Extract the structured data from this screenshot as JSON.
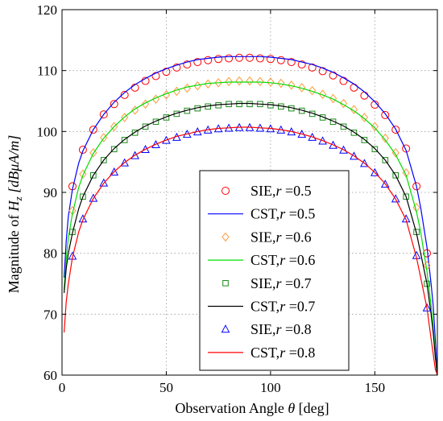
{
  "chart_data": {
    "type": "line",
    "ylabel": "Magnitude of H_z [dBμA/m]",
    "ylabel_parts": {
      "prefix": "Magnitude of ",
      "H": "H",
      "sub": "z",
      "unit": " [dBμA/m]"
    },
    "xlabel": "Observation Angle θ [deg]",
    "xlim": [
      0,
      180
    ],
    "ylim": [
      60,
      120
    ],
    "x_ticks": [
      0,
      50,
      100,
      150
    ],
    "y_ticks": [
      60,
      70,
      80,
      90,
      100,
      110,
      120
    ],
    "grid": true,
    "legend_position": "lower-center",
    "series": [
      {
        "name": "SIE,r =0.5",
        "label_prefix": "SIE,",
        "label_r": "r",
        "label_value": " =0.5",
        "kind": "markers",
        "marker": "circle",
        "color": "#ff0000",
        "x": [
          5,
          10,
          15,
          20,
          25,
          30,
          35,
          40,
          45,
          50,
          55,
          60,
          65,
          70,
          75,
          80,
          85,
          90,
          95,
          100,
          105,
          110,
          115,
          120,
          125,
          130,
          135,
          140,
          145,
          150,
          155,
          160,
          165,
          170,
          175
        ],
        "y": [
          91.0,
          97.0,
          100.3,
          102.8,
          104.5,
          106.0,
          107.2,
          108.3,
          109.1,
          109.8,
          110.5,
          111.0,
          111.4,
          111.7,
          111.9,
          112.0,
          112.1,
          112.1,
          112.0,
          111.9,
          111.7,
          111.4,
          111.0,
          110.5,
          109.9,
          109.2,
          108.3,
          107.2,
          105.9,
          104.4,
          102.7,
          100.3,
          97.2,
          91.0,
          80.0
        ]
      },
      {
        "name": "CST,r =0.5",
        "label_prefix": "CST,",
        "label_r": "r",
        "label_value": " =0.5",
        "kind": "line",
        "color": "#0000ff",
        "x": [
          1,
          2,
          3,
          5,
          8,
          10,
          15,
          20,
          25,
          30,
          35,
          40,
          45,
          50,
          55,
          60,
          65,
          70,
          75,
          80,
          85,
          90,
          95,
          100,
          105,
          110,
          115,
          120,
          125,
          130,
          135,
          140,
          145,
          150,
          155,
          160,
          165,
          170,
          172,
          175,
          177,
          178,
          179,
          180
        ],
        "y": [
          76.0,
          82.0,
          86.0,
          90.5,
          94.8,
          96.8,
          100.3,
          102.8,
          104.8,
          106.4,
          107.7,
          108.7,
          109.6,
          110.3,
          110.9,
          111.4,
          111.8,
          112.0,
          112.2,
          112.3,
          112.3,
          112.3,
          112.3,
          112.2,
          112.0,
          111.8,
          111.4,
          111.0,
          110.4,
          109.7,
          108.8,
          107.8,
          106.5,
          104.9,
          102.9,
          100.4,
          96.9,
          91.0,
          87.5,
          81.0,
          75.0,
          71.5,
          66.0,
          60.0
        ]
      },
      {
        "name": "SIE,r =0.6",
        "label_prefix": "SIE,",
        "label_r": "r",
        "label_value": " =0.6",
        "kind": "markers",
        "marker": "diamond",
        "color": "#ff9a3c",
        "x": [
          5,
          10,
          15,
          20,
          25,
          30,
          35,
          40,
          45,
          50,
          55,
          60,
          65,
          70,
          75,
          80,
          85,
          90,
          95,
          100,
          105,
          110,
          115,
          120,
          125,
          130,
          135,
          140,
          145,
          150,
          155,
          160,
          165,
          170,
          175
        ],
        "y": [
          87.0,
          93.0,
          96.5,
          99.0,
          100.8,
          102.3,
          103.5,
          104.5,
          105.3,
          106.0,
          106.6,
          107.1,
          107.5,
          107.8,
          108.0,
          108.2,
          108.3,
          108.3,
          108.2,
          108.1,
          107.9,
          107.6,
          107.2,
          106.7,
          106.1,
          105.4,
          104.6,
          103.6,
          102.3,
          100.8,
          98.9,
          96.5,
          93.2,
          87.5,
          78.0
        ]
      },
      {
        "name": "CST,r =0.6",
        "label_prefix": "CST,",
        "label_r": "r",
        "label_value": " =0.6",
        "kind": "line",
        "color": "#00dd00",
        "x": [
          1,
          2,
          3,
          5,
          8,
          10,
          15,
          20,
          25,
          30,
          35,
          40,
          45,
          50,
          55,
          60,
          65,
          70,
          75,
          80,
          85,
          90,
          95,
          100,
          105,
          110,
          115,
          120,
          125,
          130,
          135,
          140,
          145,
          150,
          155,
          160,
          165,
          170,
          172,
          175,
          177,
          178,
          179,
          180
        ],
        "y": [
          74.0,
          79.0,
          82.5,
          86.5,
          90.8,
          92.8,
          96.4,
          98.9,
          100.8,
          102.4,
          103.7,
          104.7,
          105.5,
          106.2,
          106.8,
          107.3,
          107.6,
          107.9,
          108.0,
          108.1,
          108.1,
          108.1,
          108.1,
          108.0,
          107.8,
          107.5,
          107.1,
          106.6,
          106.0,
          105.3,
          104.4,
          103.4,
          102.1,
          100.6,
          98.6,
          96.2,
          92.8,
          86.8,
          83.5,
          77.0,
          71.5,
          68.0,
          63.5,
          60.0
        ]
      },
      {
        "name": "SIE,r =0.7",
        "label_prefix": "SIE,",
        "label_r": "r",
        "label_value": " =0.7",
        "kind": "markers",
        "marker": "square",
        "color": "#1a8a1a",
        "x": [
          5,
          10,
          15,
          20,
          25,
          30,
          35,
          40,
          45,
          50,
          55,
          60,
          65,
          70,
          75,
          80,
          85,
          90,
          95,
          100,
          105,
          110,
          115,
          120,
          125,
          130,
          135,
          140,
          145,
          150,
          155,
          160,
          165,
          170,
          175
        ],
        "y": [
          83.5,
          89.3,
          92.8,
          95.3,
          97.1,
          98.6,
          99.8,
          100.8,
          101.6,
          102.3,
          102.9,
          103.4,
          103.8,
          104.1,
          104.3,
          104.5,
          104.5,
          104.5,
          104.5,
          104.3,
          104.1,
          103.8,
          103.4,
          102.9,
          102.3,
          101.6,
          100.8,
          99.8,
          98.6,
          97.1,
          95.3,
          92.8,
          89.3,
          83.5,
          75.0
        ]
      },
      {
        "name": "CST,r =0.7",
        "label_prefix": "CST,",
        "label_r": "r",
        "label_value": " =0.7",
        "kind": "line",
        "color": "#000000",
        "x": [
          1,
          2,
          3,
          5,
          8,
          10,
          15,
          20,
          25,
          30,
          35,
          40,
          45,
          50,
          55,
          60,
          65,
          70,
          75,
          80,
          85,
          90,
          95,
          100,
          105,
          110,
          115,
          120,
          125,
          130,
          135,
          140,
          145,
          150,
          155,
          160,
          165,
          170,
          172,
          175,
          177,
          178,
          179,
          180
        ],
        "y": [
          73.5,
          77.5,
          80.0,
          83.3,
          87.3,
          89.3,
          92.8,
          95.3,
          97.2,
          98.7,
          99.9,
          100.9,
          101.7,
          102.4,
          103.0,
          103.5,
          103.9,
          104.2,
          104.4,
          104.5,
          104.6,
          104.6,
          104.5,
          104.4,
          104.2,
          103.9,
          103.5,
          103.0,
          102.4,
          101.7,
          100.9,
          99.9,
          98.7,
          97.2,
          95.3,
          92.8,
          89.3,
          83.3,
          80.0,
          75.0,
          70.0,
          67.0,
          63.0,
          60.0
        ]
      },
      {
        "name": "SIE,r =0.8",
        "label_prefix": "SIE,",
        "label_r": "r",
        "label_value": " =0.8",
        "kind": "markers",
        "marker": "triangle",
        "color": "#0000ff",
        "x": [
          5,
          10,
          15,
          20,
          25,
          30,
          35,
          40,
          45,
          50,
          55,
          60,
          65,
          70,
          75,
          80,
          85,
          90,
          95,
          100,
          105,
          110,
          115,
          120,
          125,
          130,
          135,
          140,
          145,
          150,
          155,
          160,
          165,
          170,
          175
        ],
        "y": [
          79.5,
          85.6,
          89.0,
          91.5,
          93.3,
          94.8,
          96.0,
          97.0,
          97.8,
          98.5,
          99.0,
          99.5,
          99.9,
          100.2,
          100.4,
          100.5,
          100.6,
          100.6,
          100.5,
          100.4,
          100.2,
          99.9,
          99.5,
          99.0,
          98.4,
          97.7,
          96.9,
          95.9,
          94.7,
          93.2,
          91.3,
          88.9,
          85.6,
          79.6,
          71.0
        ]
      },
      {
        "name": "CST,r =0.8",
        "label_prefix": "CST,",
        "label_r": "r",
        "label_value": " =0.8",
        "kind": "line",
        "color": "#ff0000",
        "x": [
          1,
          2,
          3,
          5,
          8,
          10,
          15,
          20,
          25,
          30,
          35,
          40,
          45,
          50,
          55,
          60,
          65,
          70,
          75,
          80,
          85,
          90,
          95,
          100,
          105,
          110,
          115,
          120,
          125,
          130,
          135,
          140,
          145,
          150,
          155,
          160,
          165,
          170,
          172,
          175,
          177,
          178,
          179,
          180
        ],
        "y": [
          67.0,
          72.0,
          75.0,
          79.3,
          83.5,
          85.5,
          89.0,
          91.5,
          93.4,
          94.9,
          96.1,
          97.1,
          97.9,
          98.6,
          99.2,
          99.6,
          100.0,
          100.3,
          100.5,
          100.6,
          100.7,
          100.7,
          100.6,
          100.5,
          100.3,
          100.0,
          99.6,
          99.1,
          98.5,
          97.8,
          97.0,
          96.0,
          94.8,
          93.3,
          91.4,
          88.9,
          85.5,
          79.3,
          76.0,
          71.0,
          66.0,
          63.5,
          61.0,
          60.0
        ]
      }
    ]
  }
}
